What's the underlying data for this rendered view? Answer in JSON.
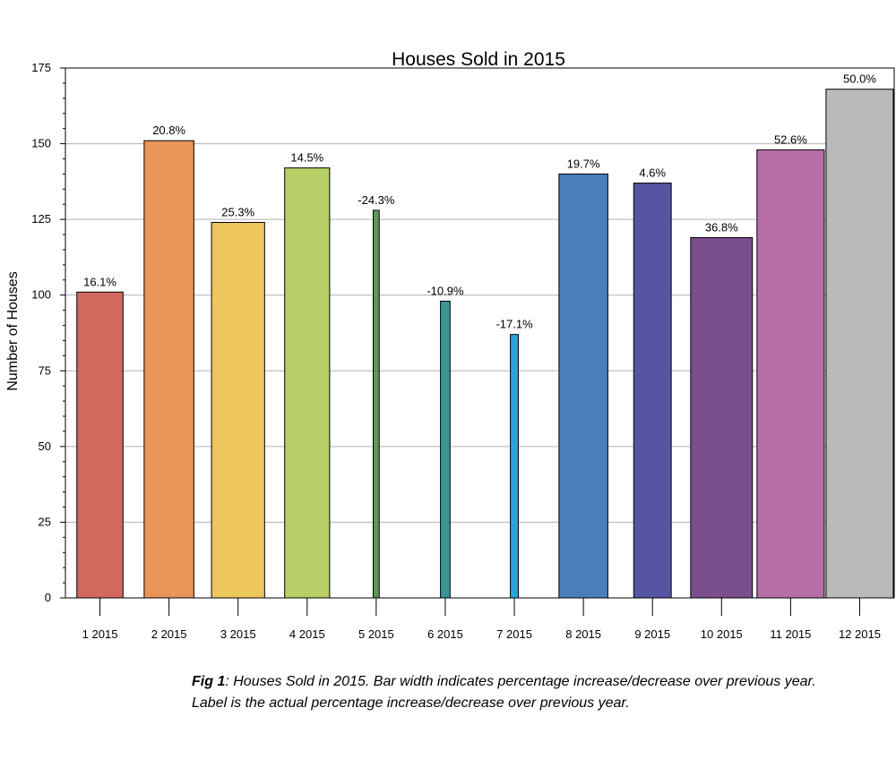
{
  "chart_data": {
    "type": "bar",
    "title": "Houses Sold in 2015",
    "xlabel": "",
    "ylabel": "Number of Houses",
    "ylim": [
      0,
      175
    ],
    "yticks": [
      0,
      25,
      50,
      75,
      100,
      125,
      150,
      175
    ],
    "grid": "horizontal",
    "categories": [
      "1 2015",
      "2 2015",
      "3 2015",
      "4 2015",
      "5 2015",
      "6 2015",
      "7 2015",
      "8 2015",
      "9 2015",
      "10 2015",
      "11 2015",
      "12 2015"
    ],
    "values": [
      101,
      151,
      124,
      142,
      128,
      98,
      87,
      140,
      137,
      119,
      148,
      168
    ],
    "percent_change": [
      16.1,
      20.8,
      25.3,
      14.5,
      -24.3,
      -10.9,
      -17.1,
      19.7,
      4.6,
      36.8,
      52.6,
      50.0
    ],
    "labels": [
      "16.1%",
      "20.8%",
      "25.3%",
      "14.5%",
      "-24.3%",
      "-10.9%",
      "-17.1%",
      "19.7%",
      "4.6%",
      "36.8%",
      "52.6%",
      "50.0%"
    ],
    "colors": [
      "#d2695e",
      "#e9955a",
      "#eec75c",
      "#b8ce66",
      "#5a9a55",
      "#3b9596",
      "#2aa6d6",
      "#487ebc",
      "#5655a3",
      "#7b4f8e",
      "#b76ea6",
      "#b9bbba"
    ]
  },
  "caption": {
    "figure_label": "Fig 1",
    "text": ": Houses Sold in 2015. Bar width indicates percentage increase/decrease over previous year. Label is the actual percentage increase/decrease over previous year."
  }
}
